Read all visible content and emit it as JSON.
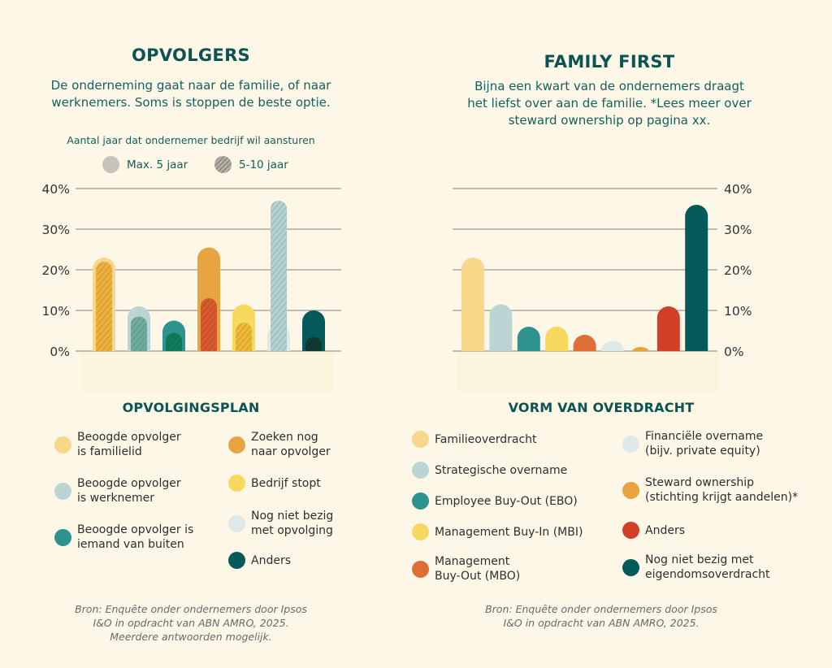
{
  "left": {
    "title": "OPVOLGERS",
    "subtitle_lines": [
      "De onderneming gaat naar de familie, of naar",
      "werknemers. Soms is stoppen de beste optie."
    ],
    "period_caption": "Aantal jaar dat ondernemer bedrijf wil aansturen",
    "period_legend": [
      {
        "label": "Max. 5 jaar",
        "style": "solid",
        "color": "#c8c3b8"
      },
      {
        "label": "5-10 jaar",
        "style": "hatched",
        "color": "#a7a39a"
      }
    ],
    "legend_title": "OPVOLGINGSPLAN",
    "legend": [
      {
        "lines": [
          "Beoogde opvolger",
          "is familielid"
        ],
        "color": "#f8d78a"
      },
      {
        "lines": [
          "Beoogde opvolger",
          "is werknemer"
        ],
        "color": "#bad5d4"
      },
      {
        "lines": [
          "Beoogde opvolger is",
          "iemand van buiten"
        ],
        "color": "#2e928e"
      },
      {
        "lines": [
          "Zoeken nog",
          "naar opvolger"
        ],
        "color": "#e9a442"
      },
      {
        "lines": [
          "Bedrijf stopt"
        ],
        "color": "#f8d960"
      },
      {
        "lines": [
          "Nog niet bezig",
          "met opvolging"
        ],
        "color": "#ddeae9"
      },
      {
        "lines": [
          "Anders"
        ],
        "color": "#04595a"
      }
    ],
    "source_lines": [
      "Bron: Enquête onder ondernemers door Ipsos",
      "I&O in opdracht van ABN AMRO, 2025.",
      "Meerdere antwoorden mogelijk."
    ]
  },
  "right": {
    "title": "FAMILY FIRST",
    "subtitle_lines": [
      "Bijna een kwart van de ondernemers draagt",
      "het liefst over aan de familie. *Lees meer over",
      "steward ownership op pagina xx."
    ],
    "legend_title": "VORM VAN OVERDRACHT",
    "legend": [
      {
        "lines": [
          "Familieoverdracht"
        ],
        "color": "#f8d78a"
      },
      {
        "lines": [
          "Strategische overname"
        ],
        "color": "#bad5d4"
      },
      {
        "lines": [
          "Employee Buy-Out (EBO)"
        ],
        "color": "#2e928e"
      },
      {
        "lines": [
          "Management Buy-In (MBI)"
        ],
        "color": "#f8d960"
      },
      {
        "lines": [
          "Management",
          "Buy-Out (MBO)"
        ],
        "color": "#de6e36"
      },
      {
        "lines": [
          "Financiële overname",
          "(bijv. private equity)"
        ],
        "color": "#ddeae9"
      },
      {
        "lines": [
          "Steward ownership",
          "(stichting krijgt aandelen)*"
        ],
        "color": "#e9a442"
      },
      {
        "lines": [
          "Anders"
        ],
        "color": "#d13f27"
      },
      {
        "lines": [
          "Nog niet bezig met",
          "eigendomsoverdracht"
        ],
        "color": "#04595a"
      }
    ],
    "source_lines": [
      "Bron: Enquête onder ondernemers door Ipsos",
      "I&O in opdracht van ABN AMRO, 2025."
    ]
  },
  "chart_data": [
    {
      "type": "bar",
      "title": "OPVOLGERS",
      "xlabel": "",
      "ylabel": "",
      "ylim": [
        0,
        40
      ],
      "yticks": [
        "0%",
        "10%",
        "20%",
        "30%",
        "40%"
      ],
      "tick_values": [
        0,
        10,
        20,
        30,
        40
      ],
      "axis_side": "left",
      "grid": true,
      "categories": [
        "Beoogde opvolger is familielid",
        "Beoogde opvolger is werknemer",
        "Beoogde opvolger is iemand van buiten",
        "Zoeken nog naar opvolger",
        "Bedrijf stopt",
        "Nog niet bezig met opvolging",
        "Anders"
      ],
      "colors": [
        "#f8d78a",
        "#bad5d4",
        "#2e928e",
        "#e9a442",
        "#f8d960",
        "#ddeae9",
        "#04595a"
      ],
      "inner_colors": [
        "#efb040",
        "#6fae9f",
        "#0f7b5c",
        "#d95a2c",
        "#efba38",
        "#b3d3d1",
        "#103a33"
      ],
      "series": [
        {
          "name": "Max. 5 jaar",
          "values": [
            23,
            11,
            7.5,
            25.5,
            11.5,
            6.5,
            10
          ]
        },
        {
          "name": "5-10 jaar",
          "values": [
            22,
            8.5,
            4.5,
            13,
            7,
            37,
            3.5
          ]
        }
      ]
    },
    {
      "type": "bar",
      "title": "FAMILY FIRST",
      "xlabel": "",
      "ylabel": "",
      "ylim": [
        0,
        40
      ],
      "yticks": [
        "0%",
        "10%",
        "20%",
        "30%",
        "40%"
      ],
      "tick_values": [
        0,
        10,
        20,
        30,
        40
      ],
      "axis_side": "right",
      "grid": true,
      "categories": [
        "Familieoverdracht",
        "Strategische overname",
        "Employee Buy-Out (EBO)",
        "Management Buy-In (MBI)",
        "Management Buy-Out (MBO)",
        "Financiële overname (bijv. private equity)",
        "Steward ownership (stichting krijgt aandelen)*",
        "Anders",
        "Nog niet bezig met eigendomsoverdracht"
      ],
      "colors": [
        "#f8d78a",
        "#bad5d4",
        "#2e928e",
        "#f8d960",
        "#de6e36",
        "#ddeae9",
        "#e9a442",
        "#d13f27",
        "#04595a"
      ],
      "values": [
        23,
        11.5,
        6,
        6,
        4,
        2.5,
        1,
        11,
        36
      ]
    }
  ]
}
